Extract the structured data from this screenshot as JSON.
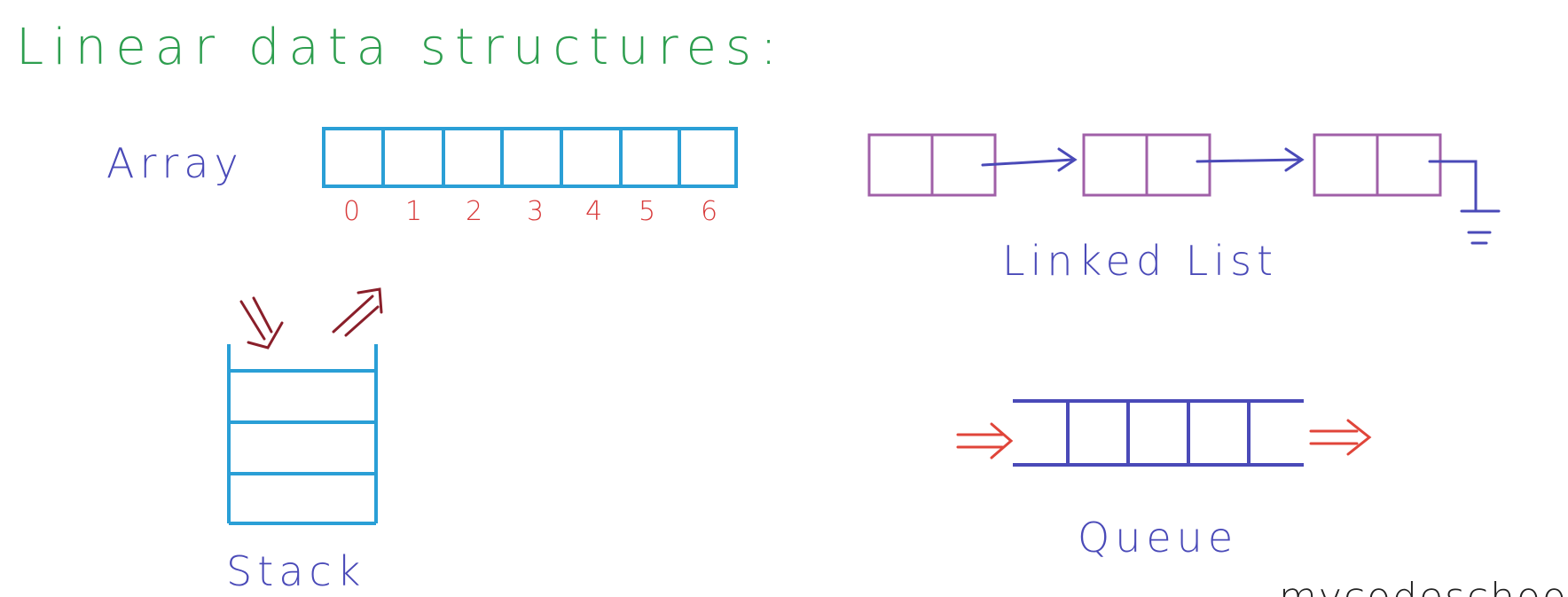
{
  "title": "Linear data structures:",
  "colors": {
    "title": "#2e9e4f",
    "label": "#4a4ab8",
    "array": "#2a9fd6",
    "index": "#d83a3a",
    "linked_list": "#a060a8",
    "stack_arrows": "#8a1f2a",
    "queue": "#4a4ab8",
    "queue_arrows": "#e0453a"
  },
  "array": {
    "label": "Array",
    "indices": [
      "0",
      "1",
      "2",
      "3",
      "4",
      "5",
      "6"
    ]
  },
  "linked_list": {
    "label": "Linked List",
    "node_count": 3
  },
  "stack": {
    "label": "Stack",
    "cell_count": 3
  },
  "queue": {
    "label": "Queue",
    "cell_count": 4
  },
  "watermark": "mycodeschool"
}
